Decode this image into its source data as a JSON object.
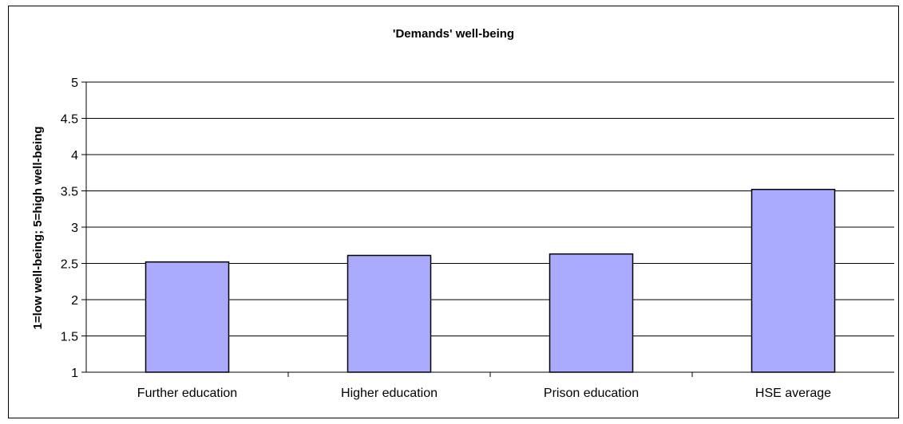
{
  "chart_data": {
    "type": "bar",
    "title": "'Demands' well-being",
    "xlabel": "",
    "ylabel": "1=low well-being; 5=high well-being",
    "categories": [
      "Further education",
      "Higher education",
      "Prison education",
      "HSE average"
    ],
    "values": [
      2.52,
      2.61,
      2.63,
      3.52
    ],
    "ylim": [
      1,
      5
    ],
    "yticks": [
      "1",
      "1.5",
      "2",
      "2.5",
      "3",
      "3.5",
      "4",
      "4.5",
      "5"
    ],
    "grid": true,
    "legend": "none",
    "colors": {
      "bar_fill": "#aaaaff",
      "bar_stroke": "#000000",
      "grid": "#000000"
    }
  }
}
